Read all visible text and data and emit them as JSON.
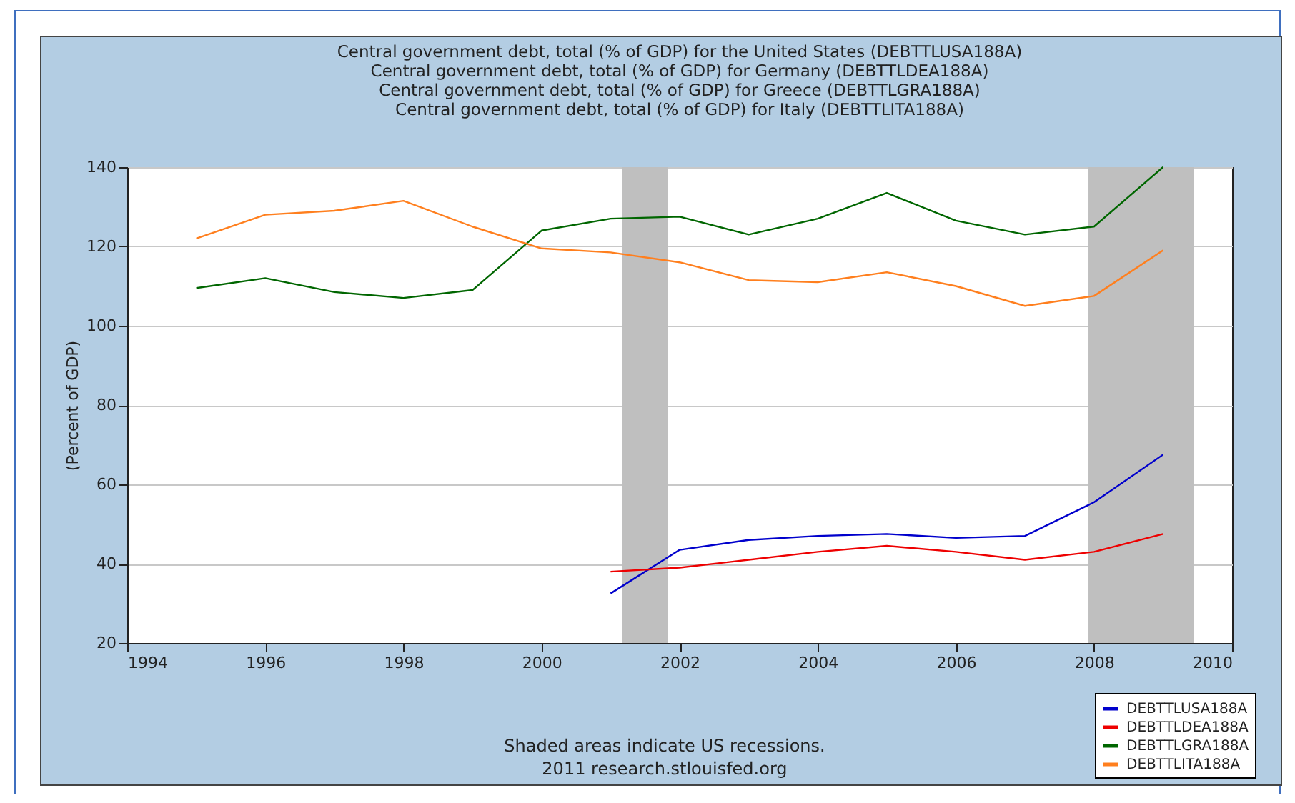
{
  "chart_data": {
    "type": "line",
    "title": [
      "Central government debt, total (% of GDP) for the United States (DEBTTLUSA188A)",
      "Central government debt, total (% of GDP) for Germany (DEBTTLDEA188A)",
      "Central government debt, total (% of GDP) for Greece (DEBTTLGRA188A)",
      "Central government debt, total (% of GDP) for Italy (DEBTTLITA188A)"
    ],
    "ylabel": "(Percent of GDP)",
    "x": [
      1995,
      1996,
      1997,
      1998,
      1999,
      2000,
      2001,
      2002,
      2003,
      2004,
      2005,
      2006,
      2007,
      2008,
      2009
    ],
    "series": [
      {
        "name": "DEBTTLUSA188A",
        "color": "#0000cc",
        "values": [
          null,
          null,
          null,
          null,
          null,
          null,
          32.5,
          43.5,
          46,
          47,
          47.5,
          46.5,
          47,
          55.5,
          67.5
        ]
      },
      {
        "name": "DEBTTLDEA188A",
        "color": "#ee0000",
        "values": [
          null,
          null,
          null,
          null,
          null,
          null,
          38,
          39,
          41,
          43,
          44.5,
          43,
          41,
          43,
          47.5
        ]
      },
      {
        "name": "DEBTTLGRA188A",
        "color": "#006600",
        "values": [
          109.5,
          112,
          108.5,
          107,
          109,
          124,
          127,
          127.5,
          123,
          127,
          133.5,
          126.5,
          123,
          125,
          140
        ]
      },
      {
        "name": "DEBTTLITA188A",
        "color": "#ff7f1e",
        "values": [
          122,
          128,
          129,
          131.5,
          125,
          119.5,
          118.5,
          116,
          111.5,
          111,
          113.5,
          110,
          105,
          107.5,
          119
        ]
      }
    ],
    "xlim": [
      1994,
      2010
    ],
    "xticks": [
      1994,
      1996,
      1998,
      2000,
      2002,
      2004,
      2006,
      2008,
      2010
    ],
    "ylim": [
      20,
      140
    ],
    "yticks": [
      20,
      40,
      60,
      80,
      100,
      120,
      140
    ],
    "bands": [
      {
        "axis": "x",
        "from": 2001.17,
        "to": 2001.83,
        "color": "#bfbfbf"
      },
      {
        "axis": "x",
        "from": 2007.92,
        "to": 2009.45,
        "color": "#bfbfbf"
      }
    ],
    "grid": "y",
    "legend": "bottom right",
    "marker": "none",
    "line_style": "solid",
    "annotations": [
      "Shaded areas indicate US recessions.",
      "2011 research.stlouisfed.org"
    ]
  }
}
